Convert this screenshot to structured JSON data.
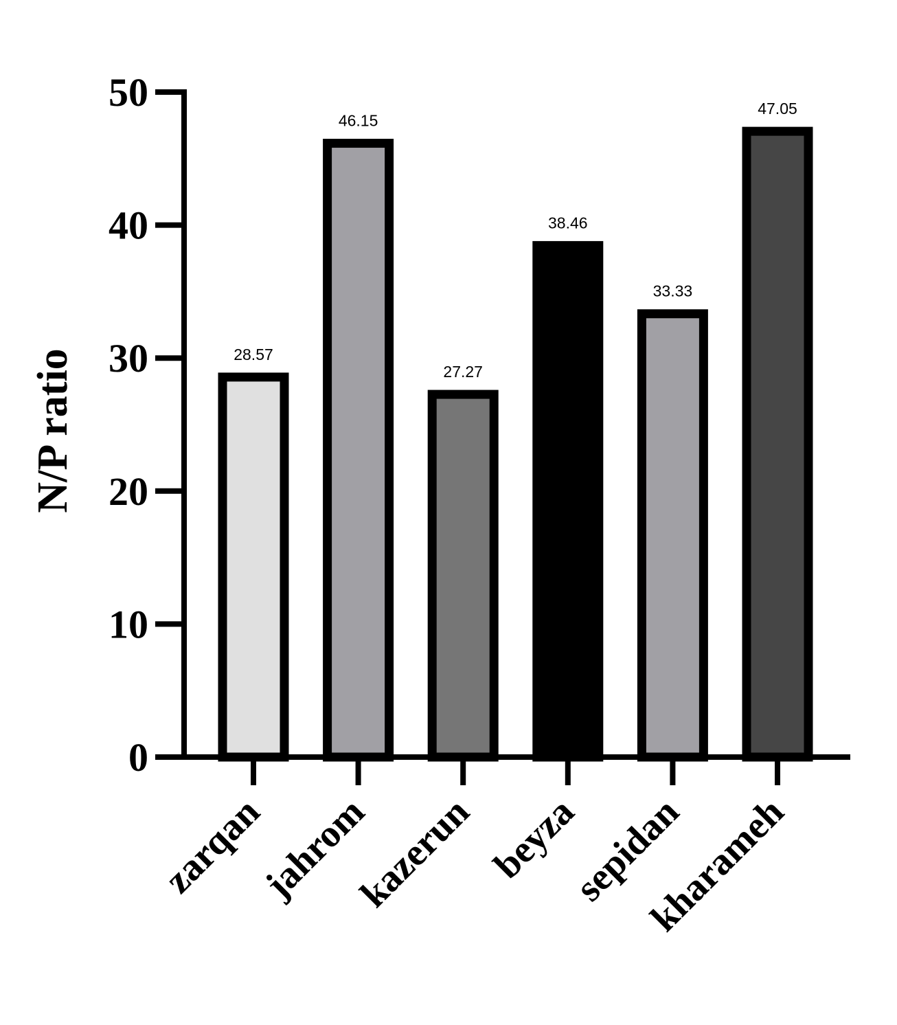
{
  "chart_data": {
    "type": "bar",
    "title": "",
    "xlabel": "",
    "ylabel": "N/P ratio",
    "ylim": [
      0,
      50
    ],
    "yticks": [
      0,
      10,
      20,
      30,
      40,
      50
    ],
    "grid": false,
    "categories": [
      "zarqan",
      "jahrom",
      "kazerun",
      "beyza",
      "sepidan",
      "kharameh"
    ],
    "values": [
      28.57,
      46.15,
      27.27,
      38.46,
      33.33,
      47.05
    ],
    "data_labels": [
      "28.57",
      "46.15",
      "27.27",
      "38.46",
      "33.33",
      "47.05"
    ],
    "bar_colors": [
      "#e0e0e0",
      "#a1a0a5",
      "#767676",
      "#000000",
      "#a1a0a5",
      "#464646"
    ],
    "edge_color": "#000000"
  }
}
